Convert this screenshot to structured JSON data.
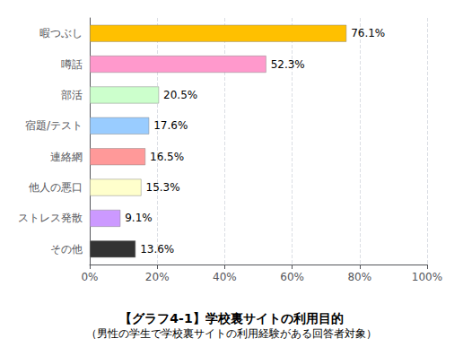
{
  "chart_data": {
    "type": "bar",
    "orientation": "horizontal",
    "title": "【グラフ4-1】学校裏サイトの利用目的",
    "subtitle": "（男性の学生で学校裏サイトの利用経験がある回答者対象）",
    "categories": [
      "暇つぶし",
      "噂話",
      "部活",
      "宿題/テスト",
      "連絡網",
      "他人の悪口",
      "ストレス発散",
      "その他"
    ],
    "values": [
      76.1,
      52.3,
      20.5,
      17.6,
      16.5,
      15.3,
      9.1,
      13.6
    ],
    "value_labels": [
      "76.1%",
      "52.3%",
      "20.5%",
      "17.6%",
      "16.5%",
      "15.3%",
      "9.1%",
      "13.6%"
    ],
    "data_labels": true,
    "colors": [
      "#FFC000",
      "#FF99CC",
      "#CCFFCC",
      "#99CCFF",
      "#FF9999",
      "#FFFFCC",
      "#CC99FF",
      "#333333"
    ],
    "xlim": [
      0,
      100
    ],
    "xticks": [
      {
        "value": 0,
        "label": "0%"
      },
      {
        "value": 20,
        "label": "20%"
      },
      {
        "value": 40,
        "label": "40%"
      },
      {
        "value": 60,
        "label": "60%"
      },
      {
        "value": 80,
        "label": "80%"
      },
      {
        "value": 100,
        "label": "100%"
      }
    ],
    "grid": true
  }
}
